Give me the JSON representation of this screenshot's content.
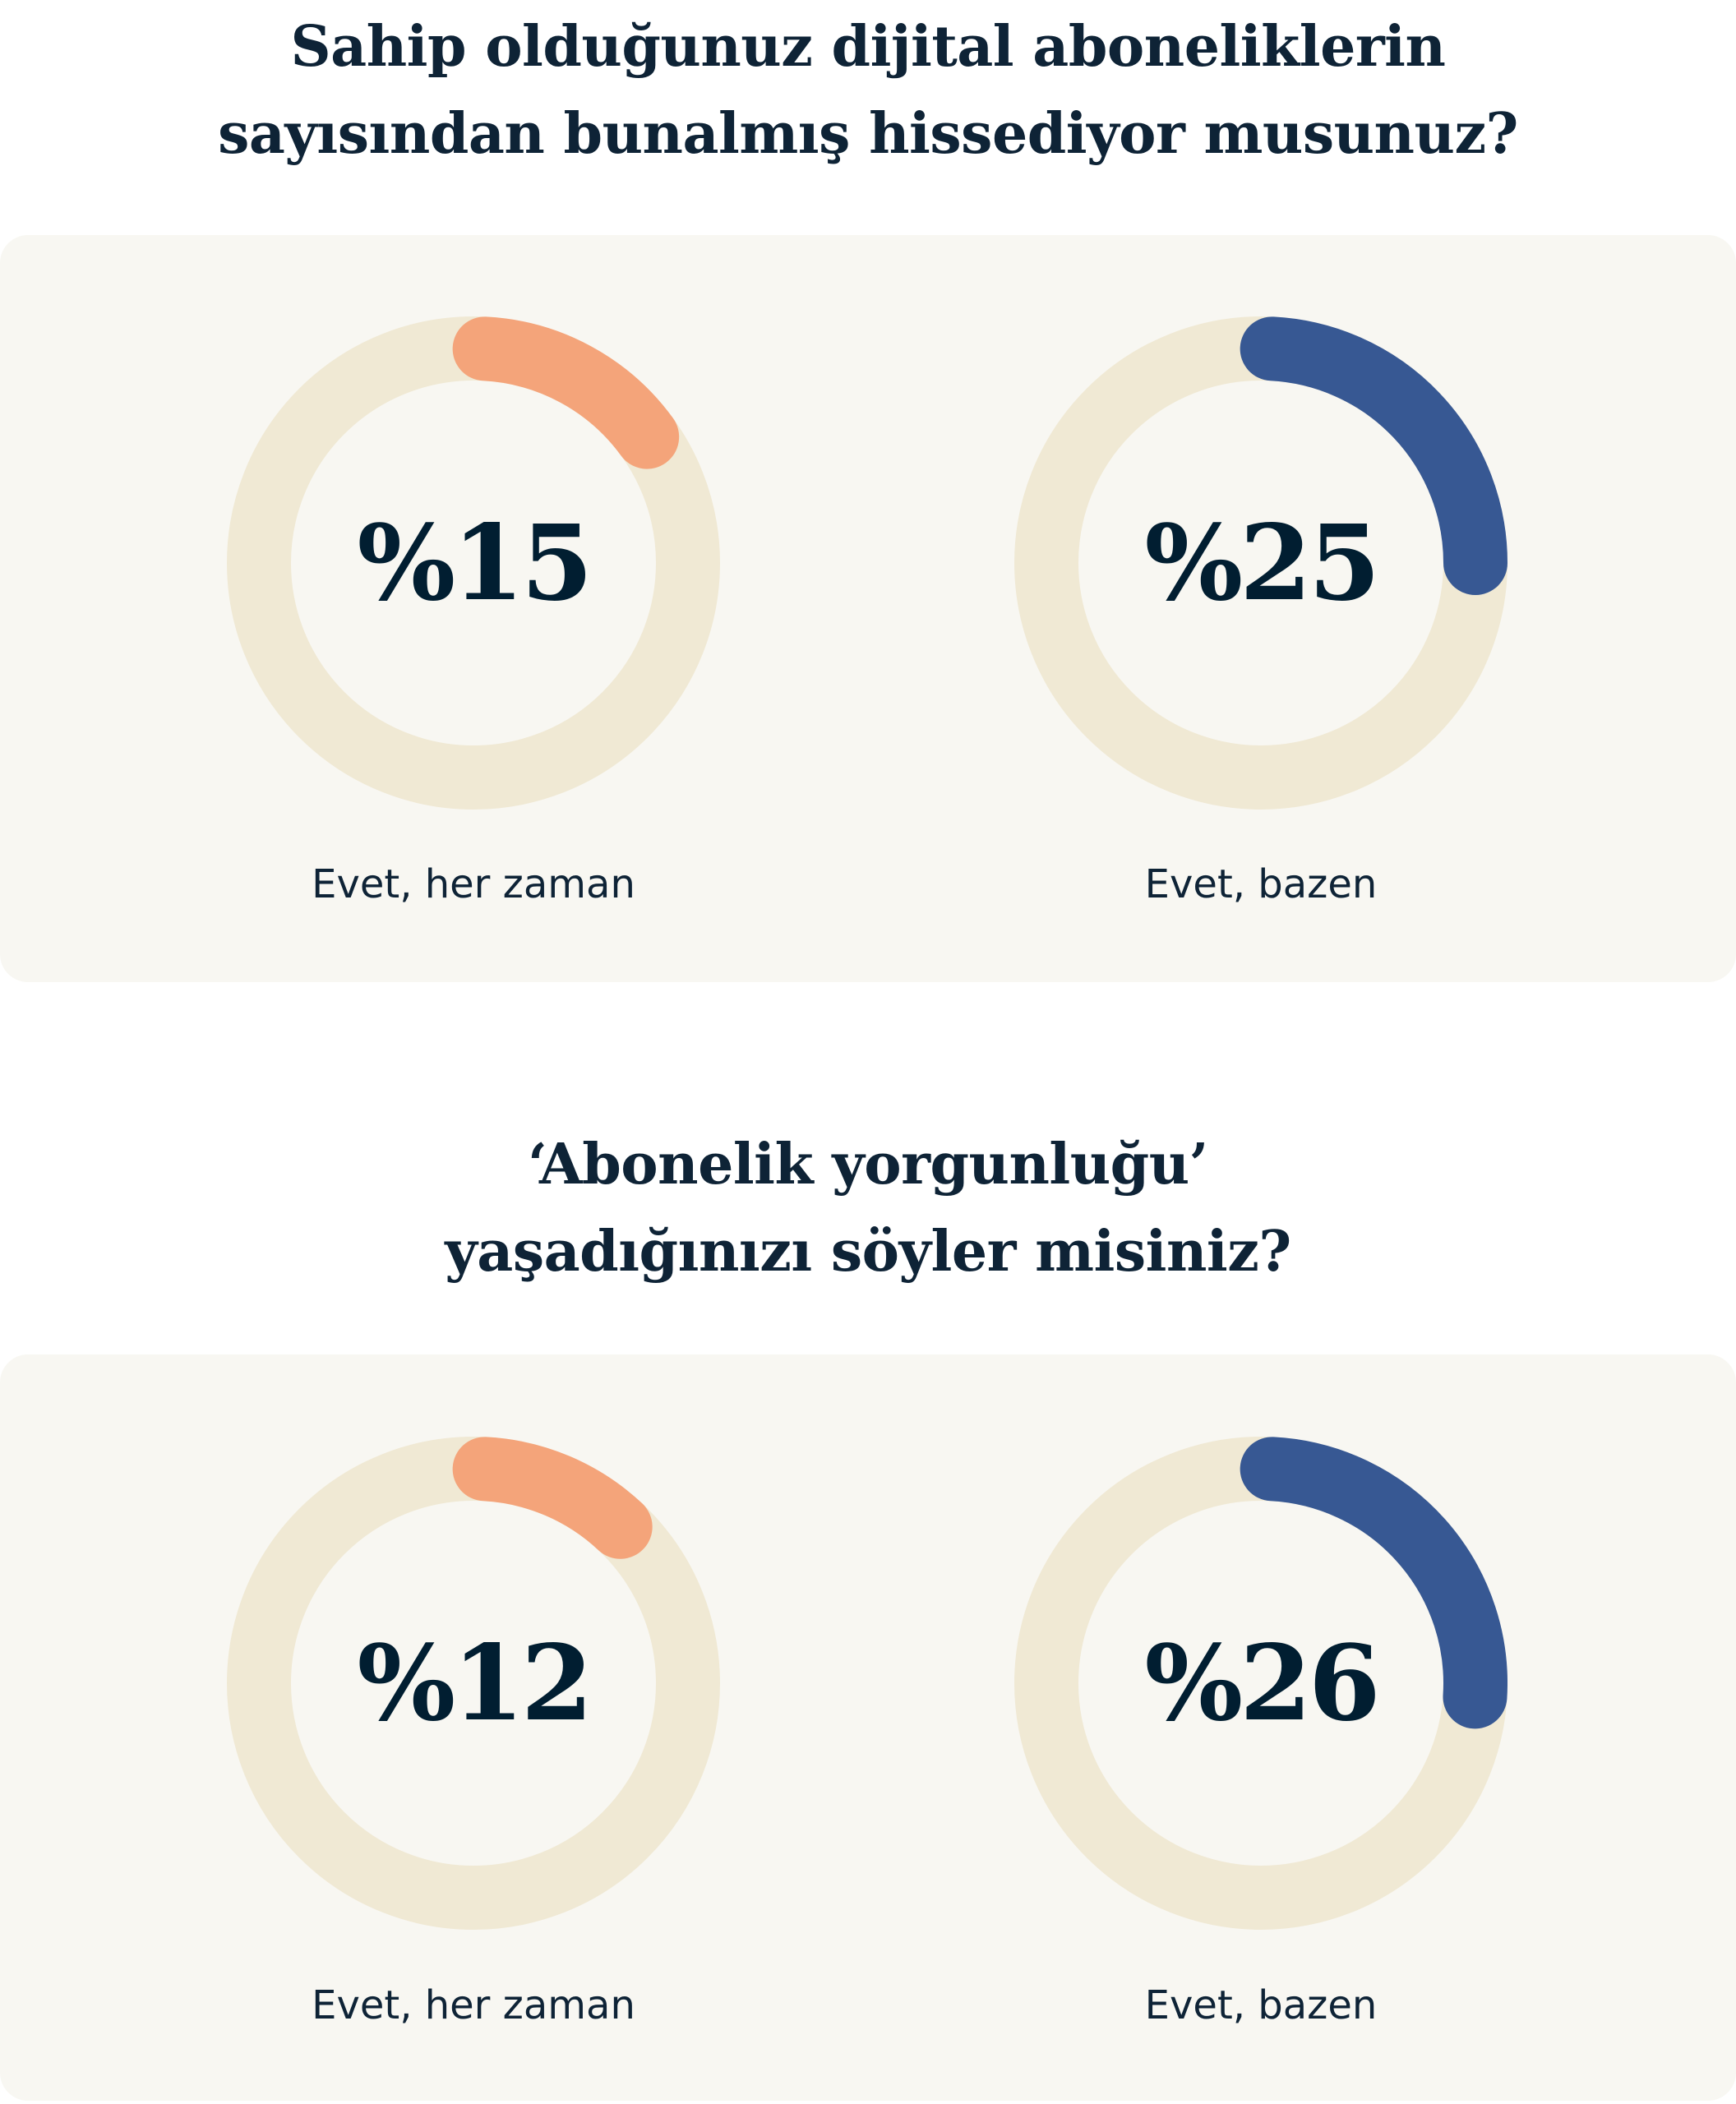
{
  "colors": {
    "track": "#F0E9D4",
    "orange": "#F4A47A",
    "blue": "#375893",
    "card": "#F8F7F2",
    "text": "#011E31"
  },
  "chart_data": [
    {
      "type": "pie",
      "title": "Sahip olduğunuz dijital aboneliklerin sayısından bunalmış hissediyor musunuz?",
      "title_lines": [
        "Sahip olduğunuz dijital aboneliklerin",
        "sayısından bunalmış hissediyor musunuz?"
      ],
      "items": [
        {
          "label": "Evet, her zaman",
          "value": 15,
          "display": "%15",
          "color": "#F4A47A"
        },
        {
          "label": "Evet, bazen",
          "value": 25,
          "display": "%25",
          "color": "#375893"
        }
      ]
    },
    {
      "type": "pie",
      "title": "‘Abonelik yorgunluğu’ yaşadığınızı söyler misiniz?",
      "title_lines": [
        "‘Abonelik yorgunluğu’",
        "yaşadığınızı söyler misiniz?"
      ],
      "items": [
        {
          "label": "Evet, her zaman",
          "value": 12,
          "display": "%12",
          "color": "#F4A47A"
        },
        {
          "label": "Evet, bazen",
          "value": 26,
          "display": "%26",
          "color": "#375893"
        }
      ]
    }
  ]
}
